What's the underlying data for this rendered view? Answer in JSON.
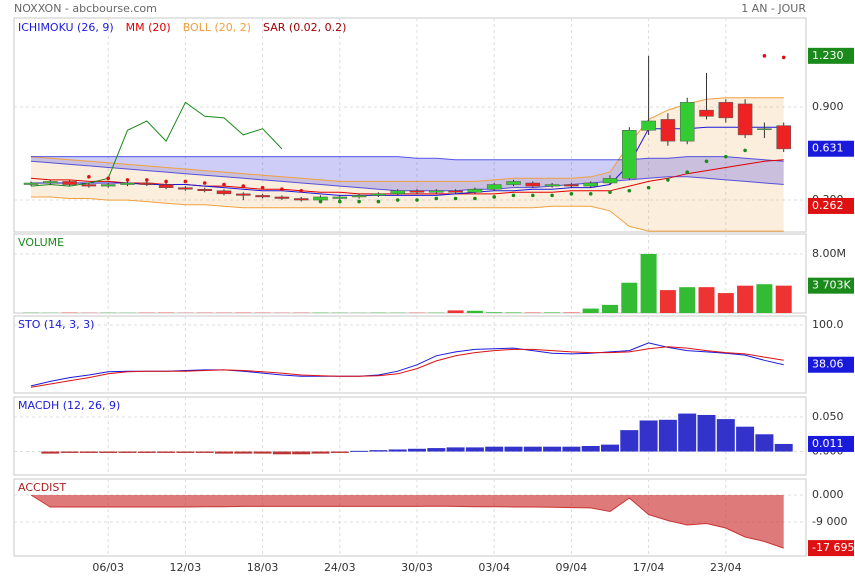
{
  "header": {
    "left": "NOXXON - abcbourse.com",
    "right": "1 AN - JOUR"
  },
  "chart_data": [
    {
      "type": "candlestick",
      "legend": [
        {
          "name": "ICHIMOKU (26, 9)",
          "color": "#1a1adc"
        },
        {
          "name": "MM (20)",
          "color": "#e00000"
        },
        {
          "name": "BOLL (20, 2)",
          "color": "#f0a040"
        },
        {
          "name": "SAR (0.02, 0.2)",
          "color": "#a00000"
        }
      ],
      "up_color": "#33cc33",
      "down_color": "#ee2222",
      "chikou_color": "#1a8a1a",
      "sar_up_color": "#1a8a1a",
      "sar_down_color": "#dd1111",
      "open": [
        0.4,
        0.41,
        0.42,
        0.4,
        0.39,
        0.4,
        0.41,
        0.4,
        0.38,
        0.37,
        0.36,
        0.34,
        0.33,
        0.32,
        0.31,
        0.3,
        0.31,
        0.32,
        0.33,
        0.34,
        0.36,
        0.35,
        0.36,
        0.35,
        0.37,
        0.4,
        0.41,
        0.39,
        0.4,
        0.39,
        0.41,
        0.44,
        0.75,
        0.82,
        0.68,
        0.88,
        0.93,
        0.92,
        0.76,
        0.78
      ],
      "high": [
        0.42,
        0.43,
        0.43,
        0.41,
        0.41,
        0.42,
        0.42,
        0.41,
        0.39,
        0.38,
        0.37,
        0.35,
        0.34,
        0.33,
        0.32,
        0.33,
        0.33,
        0.34,
        0.35,
        0.37,
        0.37,
        0.37,
        0.37,
        0.38,
        0.41,
        0.43,
        0.42,
        0.41,
        0.41,
        0.42,
        0.46,
        0.77,
        1.23,
        0.86,
        0.96,
        1.12,
        0.95,
        0.95,
        0.8,
        0.8
      ],
      "low": [
        0.39,
        0.4,
        0.39,
        0.38,
        0.38,
        0.39,
        0.39,
        0.37,
        0.36,
        0.35,
        0.33,
        0.3,
        0.31,
        0.3,
        0.29,
        0.29,
        0.3,
        0.31,
        0.32,
        0.33,
        0.34,
        0.34,
        0.34,
        0.34,
        0.36,
        0.39,
        0.38,
        0.38,
        0.38,
        0.38,
        0.4,
        0.43,
        0.72,
        0.65,
        0.66,
        0.82,
        0.8,
        0.7,
        0.7,
        0.61
      ],
      "close": [
        0.41,
        0.42,
        0.4,
        0.39,
        0.4,
        0.41,
        0.4,
        0.38,
        0.37,
        0.36,
        0.34,
        0.33,
        0.32,
        0.31,
        0.3,
        0.32,
        0.32,
        0.33,
        0.34,
        0.36,
        0.35,
        0.36,
        0.35,
        0.37,
        0.4,
        0.42,
        0.39,
        0.4,
        0.39,
        0.41,
        0.44,
        0.75,
        0.81,
        0.68,
        0.93,
        0.84,
        0.83,
        0.72,
        0.76,
        0.63
      ],
      "tenkan": [
        0.41,
        0.41,
        0.41,
        0.41,
        0.41,
        0.41,
        0.4,
        0.4,
        0.4,
        0.39,
        0.38,
        0.37,
        0.36,
        0.36,
        0.35,
        0.34,
        0.33,
        0.33,
        0.33,
        0.33,
        0.33,
        0.33,
        0.34,
        0.35,
        0.36,
        0.36,
        0.37,
        0.37,
        0.38,
        0.38,
        0.4,
        0.53,
        0.76,
        0.76,
        0.76,
        0.77,
        0.77,
        0.77,
        0.77,
        0.77
      ],
      "span_a": [
        0.58,
        0.58,
        0.58,
        0.58,
        0.58,
        0.58,
        0.58,
        0.58,
        0.58,
        0.58,
        0.58,
        0.58,
        0.58,
        0.58,
        0.58,
        0.58,
        0.58,
        0.58,
        0.58,
        0.58,
        0.57,
        0.57,
        0.56,
        0.56,
        0.56,
        0.56,
        0.56,
        0.56,
        0.56,
        0.56,
        0.56,
        0.56,
        0.57,
        0.57,
        0.58,
        0.58,
        0.58,
        0.57,
        0.56,
        0.55
      ],
      "span_b": [
        0.55,
        0.54,
        0.53,
        0.52,
        0.51,
        0.5,
        0.49,
        0.48,
        0.47,
        0.46,
        0.45,
        0.44,
        0.43,
        0.42,
        0.41,
        0.4,
        0.39,
        0.38,
        0.37,
        0.36,
        0.36,
        0.36,
        0.36,
        0.37,
        0.37,
        0.38,
        0.38,
        0.39,
        0.4,
        0.41,
        0.42,
        0.43,
        0.44,
        0.45,
        0.45,
        0.44,
        0.43,
        0.42,
        0.41,
        0.4
      ],
      "chikou": [
        0.39,
        0.4,
        0.39,
        0.41,
        0.44,
        0.75,
        0.81,
        0.68,
        0.93,
        0.84,
        0.83,
        0.72,
        0.76,
        0.63,
        null,
        null,
        null,
        null,
        null,
        null,
        null,
        null,
        null,
        null,
        null,
        null,
        null,
        null,
        null,
        null,
        null,
        null,
        null,
        null,
        null,
        null,
        null,
        null,
        null,
        null
      ],
      "mm": [
        0.44,
        0.43,
        0.43,
        0.42,
        0.42,
        0.41,
        0.41,
        0.4,
        0.4,
        0.39,
        0.39,
        0.38,
        0.37,
        0.37,
        0.36,
        0.35,
        0.35,
        0.34,
        0.34,
        0.34,
        0.34,
        0.34,
        0.34,
        0.34,
        0.34,
        0.35,
        0.35,
        0.35,
        0.36,
        0.36,
        0.36,
        0.39,
        0.42,
        0.44,
        0.47,
        0.49,
        0.51,
        0.53,
        0.55,
        0.56
      ],
      "boll_upper": [
        0.58,
        0.57,
        0.56,
        0.55,
        0.54,
        0.53,
        0.52,
        0.51,
        0.5,
        0.49,
        0.48,
        0.47,
        0.46,
        0.45,
        0.44,
        0.43,
        0.42,
        0.42,
        0.42,
        0.42,
        0.42,
        0.42,
        0.42,
        0.42,
        0.43,
        0.44,
        0.44,
        0.44,
        0.44,
        0.45,
        0.48,
        0.66,
        0.82,
        0.88,
        0.92,
        0.95,
        0.96,
        0.96,
        0.96,
        0.96
      ],
      "boll_lower": [
        0.32,
        0.32,
        0.31,
        0.31,
        0.3,
        0.3,
        0.29,
        0.28,
        0.27,
        0.27,
        0.26,
        0.25,
        0.25,
        0.25,
        0.25,
        0.25,
        0.25,
        0.25,
        0.25,
        0.25,
        0.25,
        0.25,
        0.25,
        0.25,
        0.25,
        0.25,
        0.25,
        0.26,
        0.26,
        0.26,
        0.23,
        0.13,
        0.1,
        0.1,
        0.1,
        0.1,
        0.1,
        0.1,
        0.1,
        0.1
      ],
      "sar": [
        null,
        null,
        null,
        0.45,
        0.44,
        0.43,
        0.43,
        0.42,
        0.42,
        0.41,
        0.4,
        0.39,
        0.38,
        0.37,
        0.36,
        0.29,
        0.29,
        0.29,
        0.29,
        0.3,
        0.3,
        0.31,
        0.31,
        0.31,
        0.32,
        0.33,
        0.33,
        0.33,
        0.34,
        0.34,
        0.35,
        0.36,
        0.38,
        0.43,
        0.48,
        0.55,
        0.58,
        0.62,
        1.23,
        1.22
      ],
      "ylim": [
        0.094,
        1.474
      ],
      "yticks": [
        {
          "value": 0.3,
          "label": "0.300"
        },
        {
          "value": 0.9,
          "label": "0.900"
        }
      ],
      "value_boxes": [
        {
          "value": 1.23,
          "label": "1.230",
          "color": "#1a8a1a"
        },
        {
          "value": 0.631,
          "label": "0.631",
          "color": "#1a1adc"
        },
        {
          "value": 0.262,
          "label": "0.262",
          "color": "#dd1111"
        }
      ]
    },
    {
      "type": "volume",
      "title": "VOLUME",
      "up_color": "#33bb33",
      "down_color": "#ee3333",
      "values": [
        40000,
        30000,
        50000,
        30000,
        40000,
        30000,
        40000,
        50000,
        30000,
        40000,
        40000,
        50000,
        40000,
        30000,
        40000,
        50000,
        40000,
        30000,
        50000,
        40000,
        40000,
        50000,
        350000,
        300000,
        100000,
        80000,
        60000,
        80000,
        70000,
        600000,
        1100000,
        4100000,
        8000000,
        3100000,
        3500000,
        3500000,
        2700000,
        3700000,
        3900000,
        3703000
      ],
      "ylim": [
        0,
        10700000
      ],
      "yticks": [
        {
          "value": 8000000,
          "label": "8.00M"
        }
      ],
      "value_boxes": [
        {
          "value": 3703000,
          "label": "3 703K",
          "color": "#1a8a1a"
        }
      ]
    },
    {
      "type": "line",
      "title": "STO (14, 3, 3)",
      "series": [
        {
          "color": "#1a1adc",
          "values": [
            5,
            12,
            18,
            22,
            27,
            28,
            28,
            28,
            29,
            30,
            30,
            28,
            25,
            22,
            20,
            20,
            20,
            20,
            22,
            28,
            38,
            52,
            58,
            62,
            63,
            64,
            60,
            56,
            55,
            56,
            58,
            60,
            72,
            65,
            60,
            58,
            56,
            53,
            45,
            38.06
          ]
        },
        {
          "color": "#dd1111",
          "values": [
            3,
            8,
            13,
            18,
            24,
            27,
            28,
            28,
            28,
            29,
            30,
            29,
            27,
            25,
            22,
            21,
            20,
            20,
            21,
            24,
            32,
            44,
            52,
            57,
            60,
            62,
            62,
            60,
            58,
            57,
            57,
            58,
            63,
            66,
            64,
            60,
            57,
            55,
            50,
            45
          ]
        }
      ],
      "ylim": [
        -6,
        114
      ],
      "yticks": [
        {
          "value": 100,
          "label": "100.0"
        }
      ],
      "value_boxes": [
        {
          "value": 38.06,
          "label": "38.06",
          "color": "#1a1adc"
        }
      ]
    },
    {
      "type": "bar",
      "title": "MACDH (12, 26, 9)",
      "up_color": "#3333cc",
      "down_color": "#bb3333",
      "values": [
        null,
        -0.003,
        -0.002,
        -0.002,
        -0.002,
        -0.002,
        -0.002,
        -0.002,
        -0.002,
        -0.002,
        -0.003,
        -0.003,
        -0.003,
        -0.004,
        -0.004,
        -0.003,
        -0.002,
        0.001,
        0.002,
        0.003,
        0.004,
        0.005,
        0.006,
        0.006,
        0.007,
        0.007,
        0.007,
        0.007,
        0.007,
        0.008,
        0.01,
        0.031,
        0.045,
        0.046,
        0.055,
        0.053,
        0.047,
        0.036,
        0.025,
        0.011
      ],
      "ylim": [
        -0.034,
        0.079
      ],
      "yticks": [
        {
          "value": 0.05,
          "label": "0.050"
        },
        {
          "value": 0,
          "label": "0.000"
        }
      ],
      "value_boxes": [
        {
          "value": 0.011,
          "label": "0.011",
          "color": "#1a1adc"
        }
      ]
    },
    {
      "type": "area",
      "title": "ACCDIST",
      "color": "#cc3333",
      "categories": [
        null,
        null,
        null,
        null,
        "06/03",
        null,
        null,
        null,
        "12/03",
        null,
        null,
        null,
        "18/03",
        null,
        null,
        null,
        "24/03",
        null,
        null,
        null,
        "30/03",
        null,
        null,
        null,
        "03/04",
        null,
        null,
        null,
        "09/04",
        null,
        null,
        null,
        "17/04",
        null,
        null,
        null,
        "23/04",
        null,
        null,
        null
      ],
      "values": [
        0,
        -4000,
        -4000,
        -4000,
        -4000,
        -4000,
        -4000,
        -4000,
        -4000,
        -3900,
        -3900,
        -3800,
        -3800,
        -3800,
        -3800,
        -3800,
        -3800,
        -3800,
        -3800,
        -3800,
        -3800,
        -3700,
        -3800,
        -3900,
        -3900,
        -4000,
        -4000,
        -4100,
        -4200,
        -4300,
        -5500,
        -1000,
        -6500,
        -8500,
        -10000,
        -9500,
        -11000,
        -14000,
        -15500,
        -17695
      ],
      "ylim": [
        -20333,
        5333
      ],
      "yticks": [
        {
          "value": 0,
          "label": "0.000"
        },
        {
          "value": -9000,
          "label": "-9 000"
        }
      ],
      "value_boxes": [
        {
          "value": -17695,
          "label": "-17 695",
          "color": "#dd1111"
        }
      ]
    }
  ]
}
